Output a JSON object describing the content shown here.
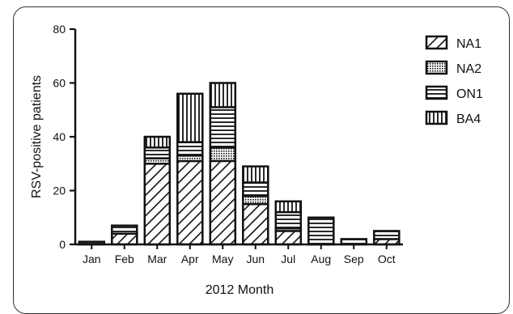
{
  "chart_data": {
    "type": "bar",
    "stacked": true,
    "title": "",
    "xlabel": "2012 Month",
    "ylabel": "RSV-positive patients",
    "ylim": [
      0,
      80
    ],
    "yticks": [
      "0",
      "20",
      "40",
      "60",
      "80"
    ],
    "categories": [
      "Jan",
      "Feb",
      "Mar",
      "Apr",
      "May",
      "Jun",
      "Jul",
      "Aug",
      "Sep",
      "Oct"
    ],
    "series": [
      {
        "name": "NA1",
        "pattern": "diagonal",
        "values": [
          0,
          4,
          30,
          31,
          31,
          15,
          5,
          0,
          0,
          2
        ]
      },
      {
        "name": "NA2",
        "pattern": "dots",
        "values": [
          0,
          0,
          2,
          2,
          5,
          3,
          1,
          0,
          0,
          0
        ]
      },
      {
        "name": "ON1",
        "pattern": "horizontal",
        "values": [
          1,
          3,
          4,
          5,
          15,
          5,
          6,
          10,
          2,
          3
        ]
      },
      {
        "name": "BA4",
        "pattern": "vertical",
        "values": [
          0,
          0,
          4,
          18,
          9,
          6,
          4,
          0,
          0,
          0
        ]
      }
    ],
    "legend_position": "top-right",
    "grid": false
  }
}
